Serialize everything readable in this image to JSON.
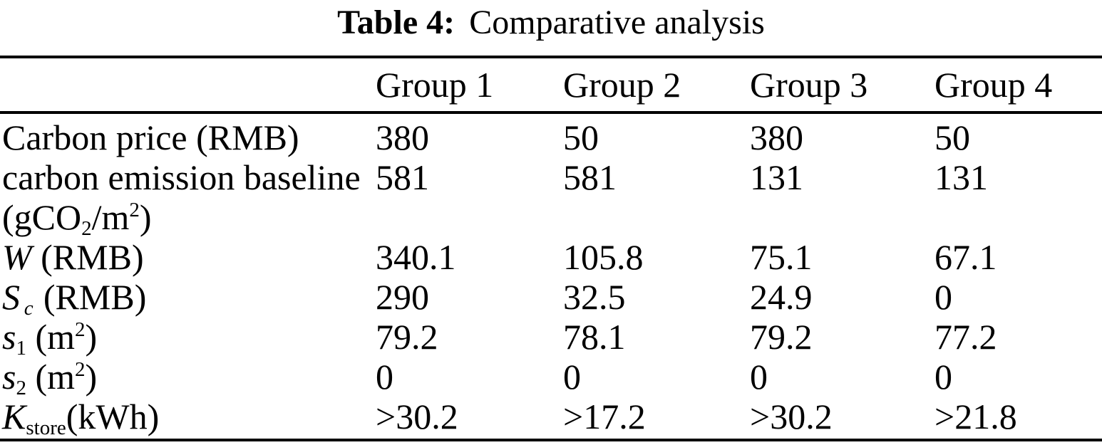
{
  "caption": {
    "label": "Table 4:",
    "title": "Comparative analysis"
  },
  "colors": {
    "text": "#000000",
    "background": "#ffffff",
    "rule": "#000000"
  },
  "table": {
    "columns": [
      "Group 1",
      "Group 2",
      "Group 3",
      "Group 4"
    ],
    "rows": [
      {
        "name": "carbon-price",
        "label": [
          [
            {
              "t": "Carbon price (RMB)",
              "s": "r"
            }
          ]
        ],
        "values": [
          "380",
          "50",
          "380",
          "50"
        ]
      },
      {
        "name": "carbon-emission-baseline",
        "label": [
          [
            {
              "t": "carbon emission baseline",
              "s": "r"
            }
          ],
          [
            {
              "t": "(gCO",
              "s": "r"
            },
            {
              "t": "2",
              "s": "sub"
            },
            {
              "t": "/m",
              "s": "r"
            },
            {
              "t": "2",
              "s": "sup"
            },
            {
              "t": ")",
              "s": "r"
            }
          ]
        ],
        "values": [
          "581",
          "581",
          "131",
          "131"
        ]
      },
      {
        "name": "w-rmb",
        "label": [
          [
            {
              "t": "W",
              "s": "i"
            },
            {
              "t": " (RMB)",
              "s": "r"
            }
          ]
        ],
        "values": [
          "340.1",
          "105.8",
          "75.1",
          "67.1"
        ]
      },
      {
        "name": "sc-rmb",
        "label": [
          [
            {
              "t": "S",
              "s": "i"
            },
            {
              "t": "c",
              "s": "subi"
            },
            {
              "t": " (RMB)",
              "s": "r"
            }
          ]
        ],
        "values": [
          "290",
          "32.5",
          "24.9",
          "0"
        ]
      },
      {
        "name": "s1-m2",
        "label": [
          [
            {
              "t": "s",
              "s": "i"
            },
            {
              "t": "1",
              "s": "sub"
            },
            {
              "t": " (m",
              "s": "r"
            },
            {
              "t": "2",
              "s": "sup"
            },
            {
              "t": ")",
              "s": "r"
            }
          ]
        ],
        "values": [
          "79.2",
          "78.1",
          "79.2",
          "77.2"
        ]
      },
      {
        "name": "s2-m2",
        "label": [
          [
            {
              "t": "s",
              "s": "i"
            },
            {
              "t": "2",
              "s": "sub"
            },
            {
              "t": " (m",
              "s": "r"
            },
            {
              "t": "2",
              "s": "sup"
            },
            {
              "t": ")",
              "s": "r"
            }
          ]
        ],
        "values": [
          "0",
          "0",
          "0",
          "0"
        ]
      },
      {
        "name": "kstore-kwh",
        "label": [
          [
            {
              "t": "K",
              "s": "i"
            },
            {
              "t": "store",
              "s": "sub"
            },
            {
              "t": "(kWh)",
              "s": "r"
            }
          ]
        ],
        "values": [
          ">30.2",
          ">17.2",
          ">30.2",
          ">21.8"
        ]
      }
    ]
  }
}
